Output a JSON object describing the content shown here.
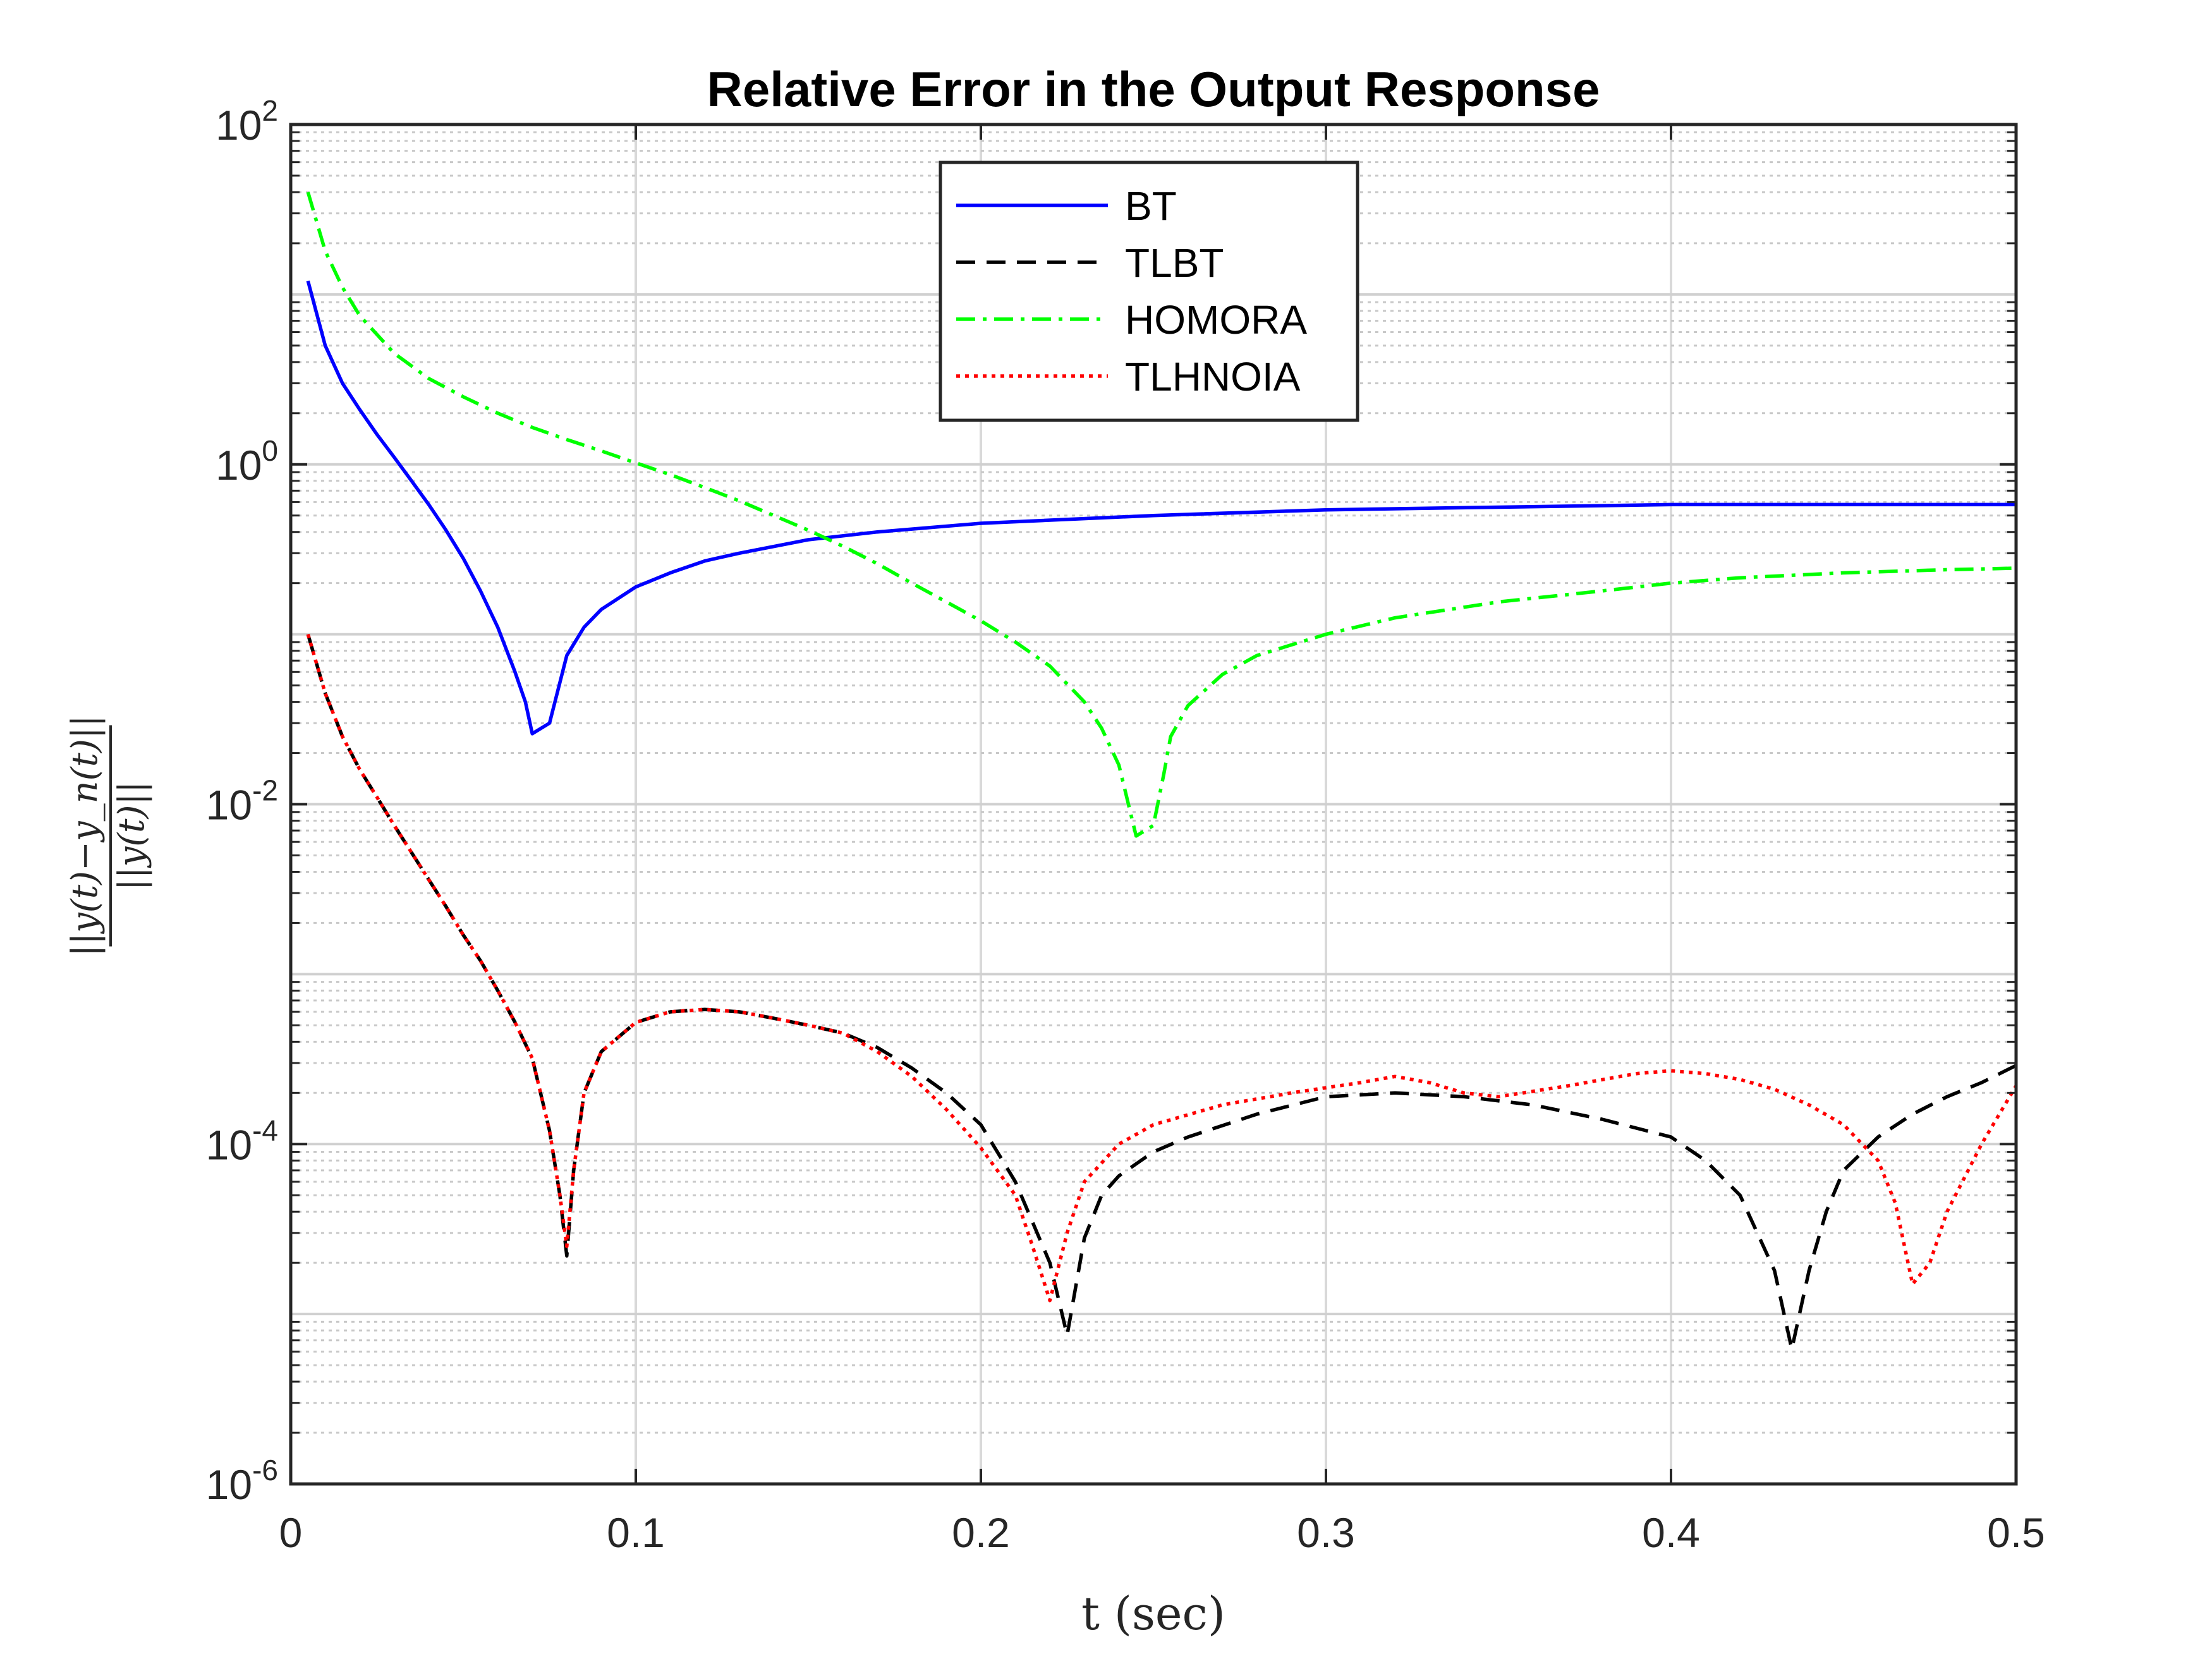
{
  "chart_data": {
    "type": "line",
    "title": "Relative Error in the Output Response",
    "xlabel": "t (sec)",
    "ylabel": "||y(t)−y_n(t)|| / ||y(t)||",
    "xlim": [
      0,
      0.5
    ],
    "ylim": [
      1e-06,
      100
    ],
    "yscale": "log",
    "grid": true,
    "legend_position": "top-center",
    "x_ticks": [
      "0",
      "0.1",
      "0.2",
      "0.3",
      "0.4",
      "0.5"
    ],
    "y_ticks": [
      {
        "base": "10",
        "exp": "2"
      },
      {
        "base": "10",
        "exp": "0"
      },
      {
        "base": "10",
        "exp": "-2"
      },
      {
        "base": "10",
        "exp": "-4"
      },
      {
        "base": "10",
        "exp": "-6"
      }
    ],
    "series": [
      {
        "name": "BT",
        "color": "#0000ff",
        "dash": "solid",
        "points": [
          [
            0.005,
            12
          ],
          [
            0.01,
            5
          ],
          [
            0.015,
            3
          ],
          [
            0.02,
            2.1
          ],
          [
            0.025,
            1.5
          ],
          [
            0.03,
            1.1
          ],
          [
            0.035,
            0.8
          ],
          [
            0.04,
            0.58
          ],
          [
            0.045,
            0.41
          ],
          [
            0.05,
            0.28
          ],
          [
            0.055,
            0.18
          ],
          [
            0.06,
            0.11
          ],
          [
            0.065,
            0.06
          ],
          [
            0.068,
            0.04
          ],
          [
            0.07,
            0.026
          ],
          [
            0.075,
            0.03
          ],
          [
            0.08,
            0.075
          ],
          [
            0.085,
            0.11
          ],
          [
            0.09,
            0.14
          ],
          [
            0.1,
            0.19
          ],
          [
            0.11,
            0.23
          ],
          [
            0.12,
            0.27
          ],
          [
            0.13,
            0.3
          ],
          [
            0.15,
            0.36
          ],
          [
            0.17,
            0.4
          ],
          [
            0.2,
            0.45
          ],
          [
            0.25,
            0.5
          ],
          [
            0.3,
            0.54
          ],
          [
            0.35,
            0.56
          ],
          [
            0.4,
            0.58
          ],
          [
            0.45,
            0.58
          ],
          [
            0.5,
            0.58
          ]
        ]
      },
      {
        "name": "TLBT",
        "color": "#000000",
        "dash": "dashed",
        "points": [
          [
            0.005,
            0.1
          ],
          [
            0.01,
            0.045
          ],
          [
            0.015,
            0.025
          ],
          [
            0.02,
            0.016
          ],
          [
            0.025,
            0.011
          ],
          [
            0.03,
            0.0075
          ],
          [
            0.035,
            0.0052
          ],
          [
            0.04,
            0.0036
          ],
          [
            0.045,
            0.0025
          ],
          [
            0.05,
            0.0017
          ],
          [
            0.055,
            0.0012
          ],
          [
            0.06,
            0.0008
          ],
          [
            0.065,
            0.00052
          ],
          [
            0.07,
            0.00032
          ],
          [
            0.075,
            0.00012
          ],
          [
            0.078,
            5e-05
          ],
          [
            0.08,
            2.2e-05
          ],
          [
            0.082,
            7e-05
          ],
          [
            0.085,
            0.0002
          ],
          [
            0.09,
            0.00035
          ],
          [
            0.1,
            0.00052
          ],
          [
            0.11,
            0.0006
          ],
          [
            0.12,
            0.00062
          ],
          [
            0.13,
            0.0006
          ],
          [
            0.14,
            0.00055
          ],
          [
            0.15,
            0.0005
          ],
          [
            0.16,
            0.00045
          ],
          [
            0.17,
            0.00037
          ],
          [
            0.18,
            0.00028
          ],
          [
            0.19,
            0.0002
          ],
          [
            0.2,
            0.00013
          ],
          [
            0.21,
            6e-05
          ],
          [
            0.22,
            2e-05
          ],
          [
            0.225,
            7.5e-06
          ],
          [
            0.23,
            2.8e-05
          ],
          [
            0.235,
            5e-05
          ],
          [
            0.24,
            6.5e-05
          ],
          [
            0.25,
            9e-05
          ],
          [
            0.26,
            0.00011
          ],
          [
            0.28,
            0.00015
          ],
          [
            0.3,
            0.00019
          ],
          [
            0.32,
            0.0002
          ],
          [
            0.34,
            0.00019
          ],
          [
            0.36,
            0.00017
          ],
          [
            0.38,
            0.00014
          ],
          [
            0.4,
            0.00011
          ],
          [
            0.41,
            8e-05
          ],
          [
            0.42,
            5e-05
          ],
          [
            0.43,
            1.8e-05
          ],
          [
            0.435,
            6.2e-06
          ],
          [
            0.44,
            1.8e-05
          ],
          [
            0.445,
            4e-05
          ],
          [
            0.45,
            7e-05
          ],
          [
            0.46,
            0.00011
          ],
          [
            0.47,
            0.00015
          ],
          [
            0.48,
            0.00019
          ],
          [
            0.49,
            0.00023
          ],
          [
            0.5,
            0.00029
          ]
        ]
      },
      {
        "name": "HOMORA",
        "color": "#00ff00",
        "dash": "dashdot",
        "points": [
          [
            0.005,
            40
          ],
          [
            0.01,
            18
          ],
          [
            0.015,
            11
          ],
          [
            0.02,
            7.5
          ],
          [
            0.03,
            4.5
          ],
          [
            0.04,
            3.2
          ],
          [
            0.05,
            2.5
          ],
          [
            0.06,
            2.0
          ],
          [
            0.07,
            1.65
          ],
          [
            0.08,
            1.4
          ],
          [
            0.09,
            1.2
          ],
          [
            0.1,
            1.02
          ],
          [
            0.11,
            0.87
          ],
          [
            0.12,
            0.73
          ],
          [
            0.13,
            0.61
          ],
          [
            0.14,
            0.5
          ],
          [
            0.15,
            0.41
          ],
          [
            0.16,
            0.33
          ],
          [
            0.17,
            0.26
          ],
          [
            0.18,
            0.2
          ],
          [
            0.19,
            0.155
          ],
          [
            0.2,
            0.12
          ],
          [
            0.21,
            0.09
          ],
          [
            0.22,
            0.065
          ],
          [
            0.23,
            0.04
          ],
          [
            0.235,
            0.028
          ],
          [
            0.24,
            0.017
          ],
          [
            0.245,
            0.0065
          ],
          [
            0.25,
            0.0075
          ],
          [
            0.253,
            0.015
          ],
          [
            0.255,
            0.025
          ],
          [
            0.26,
            0.038
          ],
          [
            0.27,
            0.058
          ],
          [
            0.28,
            0.075
          ],
          [
            0.3,
            0.1
          ],
          [
            0.32,
            0.125
          ],
          [
            0.35,
            0.155
          ],
          [
            0.38,
            0.18
          ],
          [
            0.4,
            0.2
          ],
          [
            0.42,
            0.215
          ],
          [
            0.45,
            0.23
          ],
          [
            0.48,
            0.24
          ],
          [
            0.5,
            0.245
          ]
        ]
      },
      {
        "name": "TLHNOIA",
        "color": "#ff0000",
        "dash": "dotted",
        "points": [
          [
            0.005,
            0.1
          ],
          [
            0.01,
            0.045
          ],
          [
            0.015,
            0.025
          ],
          [
            0.02,
            0.016
          ],
          [
            0.025,
            0.011
          ],
          [
            0.03,
            0.0075
          ],
          [
            0.035,
            0.0052
          ],
          [
            0.04,
            0.0036
          ],
          [
            0.045,
            0.0025
          ],
          [
            0.05,
            0.0017
          ],
          [
            0.055,
            0.0012
          ],
          [
            0.06,
            0.0008
          ],
          [
            0.065,
            0.00052
          ],
          [
            0.07,
            0.00032
          ],
          [
            0.075,
            0.00012
          ],
          [
            0.078,
            5e-05
          ],
          [
            0.08,
            2.5e-05
          ],
          [
            0.082,
            7e-05
          ],
          [
            0.085,
            0.0002
          ],
          [
            0.09,
            0.00035
          ],
          [
            0.1,
            0.00052
          ],
          [
            0.11,
            0.0006
          ],
          [
            0.12,
            0.00062
          ],
          [
            0.13,
            0.0006
          ],
          [
            0.14,
            0.00055
          ],
          [
            0.15,
            0.0005
          ],
          [
            0.16,
            0.00045
          ],
          [
            0.17,
            0.00035
          ],
          [
            0.18,
            0.00025
          ],
          [
            0.19,
            0.00016
          ],
          [
            0.2,
            9.5e-05
          ],
          [
            0.21,
            5e-05
          ],
          [
            0.215,
            2.5e-05
          ],
          [
            0.22,
            1.2e-05
          ],
          [
            0.225,
            3e-05
          ],
          [
            0.23,
            6e-05
          ],
          [
            0.24,
            0.0001
          ],
          [
            0.25,
            0.00013
          ],
          [
            0.27,
            0.00017
          ],
          [
            0.29,
            0.0002
          ],
          [
            0.31,
            0.00023
          ],
          [
            0.32,
            0.00025
          ],
          [
            0.33,
            0.00023
          ],
          [
            0.34,
            0.0002
          ],
          [
            0.35,
            0.00019
          ],
          [
            0.37,
            0.00022
          ],
          [
            0.39,
            0.00026
          ],
          [
            0.4,
            0.00027
          ],
          [
            0.41,
            0.00026
          ],
          [
            0.42,
            0.00024
          ],
          [
            0.43,
            0.00021
          ],
          [
            0.44,
            0.00017
          ],
          [
            0.45,
            0.00013
          ],
          [
            0.46,
            8e-05
          ],
          [
            0.465,
            4.5e-05
          ],
          [
            0.47,
            1.5e-05
          ],
          [
            0.475,
            2e-05
          ],
          [
            0.48,
            4e-05
          ],
          [
            0.49,
            0.0001
          ],
          [
            0.5,
            0.00022
          ]
        ]
      }
    ]
  }
}
